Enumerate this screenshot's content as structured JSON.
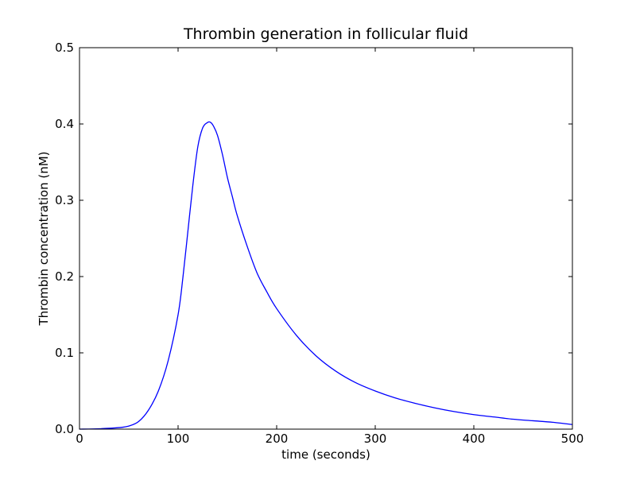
{
  "chart_data": {
    "type": "line",
    "title": "Thrombin generation in follicular fluid",
    "xlabel": "time (seconds)",
    "ylabel": "Thrombin concentration (nM)",
    "xlim": [
      0,
      500
    ],
    "ylim": [
      0.0,
      0.5
    ],
    "xticks": [
      0,
      100,
      200,
      300,
      400,
      500
    ],
    "xtick_labels": [
      "0",
      "100",
      "200",
      "300",
      "400",
      "500"
    ],
    "yticks": [
      0.0,
      0.1,
      0.2,
      0.3,
      0.4,
      0.5
    ],
    "ytick_labels": [
      "0.0",
      "0.1",
      "0.2",
      "0.3",
      "0.4",
      "0.5"
    ],
    "grid": false,
    "legend": "none",
    "series": [
      {
        "color": "#0000ff",
        "x": [
          0,
          20,
          40,
          50,
          60,
          70,
          80,
          90,
          100,
          105,
          110,
          115,
          120,
          125,
          130,
          133,
          136,
          140,
          145,
          150,
          155,
          160,
          170,
          180,
          190,
          200,
          220,
          240,
          260,
          280,
          300,
          320,
          340,
          360,
          380,
          400,
          420,
          440,
          460,
          480,
          500
        ],
        "y": [
          0.0,
          0.0005,
          0.002,
          0.004,
          0.01,
          0.025,
          0.05,
          0.09,
          0.15,
          0.2,
          0.26,
          0.32,
          0.37,
          0.395,
          0.402,
          0.402,
          0.397,
          0.385,
          0.36,
          0.33,
          0.305,
          0.28,
          0.24,
          0.205,
          0.18,
          0.158,
          0.123,
          0.096,
          0.076,
          0.061,
          0.05,
          0.041,
          0.034,
          0.028,
          0.023,
          0.019,
          0.016,
          0.013,
          0.011,
          0.009,
          0.006
        ]
      }
    ]
  }
}
